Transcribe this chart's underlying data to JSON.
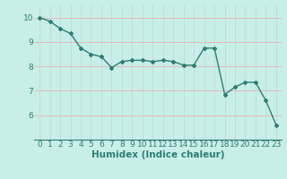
{
  "x": [
    0,
    1,
    2,
    3,
    4,
    5,
    6,
    7,
    8,
    9,
    10,
    11,
    12,
    13,
    14,
    15,
    16,
    17,
    18,
    19,
    20,
    21,
    22,
    23
  ],
  "y": [
    10.0,
    9.85,
    9.55,
    9.35,
    8.75,
    8.5,
    8.4,
    7.95,
    8.2,
    8.25,
    8.25,
    8.2,
    8.25,
    8.2,
    8.05,
    8.05,
    8.75,
    8.75,
    6.85,
    7.15,
    7.35,
    7.35,
    6.6,
    5.6
  ],
  "line_color": "#2d7d74",
  "marker": "D",
  "markersize": 2.0,
  "linewidth": 1.0,
  "xlabel": "Humidex (Indice chaleur)",
  "xlabel_fontsize": 7.5,
  "xlim": [
    -0.5,
    23.5
  ],
  "ylim": [
    5.0,
    10.5
  ],
  "yticks": [
    6,
    7,
    8,
    9,
    10
  ],
  "xticks": [
    0,
    1,
    2,
    3,
    4,
    5,
    6,
    7,
    8,
    9,
    10,
    11,
    12,
    13,
    14,
    15,
    16,
    17,
    18,
    19,
    20,
    21,
    22,
    23
  ],
  "bg_color": "#c8eee8",
  "grid_color_h": "#e8b8b8",
  "grid_color_v": "#c0ddd8",
  "tick_fontsize": 6.5,
  "tick_color": "#2d7d74"
}
